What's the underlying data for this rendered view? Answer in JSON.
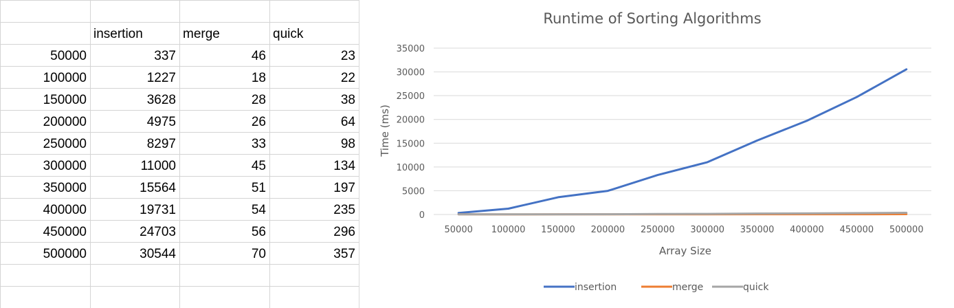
{
  "sheet": {
    "headers": [
      "",
      "insertion",
      "merge",
      "quick"
    ],
    "rows": [
      [
        "50000",
        "337",
        "46",
        "23"
      ],
      [
        "100000",
        "1227",
        "18",
        "22"
      ],
      [
        "150000",
        "3628",
        "28",
        "38"
      ],
      [
        "200000",
        "4975",
        "26",
        "64"
      ],
      [
        "250000",
        "8297",
        "33",
        "98"
      ],
      [
        "300000",
        "11000",
        "45",
        "134"
      ],
      [
        "350000",
        "15564",
        "51",
        "197"
      ],
      [
        "400000",
        "19731",
        "54",
        "235"
      ],
      [
        "450000",
        "24703",
        "56",
        "296"
      ],
      [
        "500000",
        "30544",
        "70",
        "357"
      ]
    ]
  },
  "chart_data": {
    "type": "line",
    "title": "Runtime of Sorting Algorithms",
    "xlabel": "Array Size",
    "ylabel": "Time (ms)",
    "categories": [
      "50000",
      "100000",
      "150000",
      "200000",
      "250000",
      "300000",
      "350000",
      "400000",
      "450000",
      "500000"
    ],
    "ylim": [
      0,
      35000
    ],
    "yticks": [
      "0",
      "5000",
      "10000",
      "15000",
      "20000",
      "25000",
      "30000",
      "35000"
    ],
    "grid": true,
    "legend": "bottom",
    "series": [
      {
        "name": "insertion",
        "color": "#4472c4",
        "values": [
          337,
          1227,
          3628,
          4975,
          8297,
          11000,
          15564,
          19731,
          24703,
          30544
        ]
      },
      {
        "name": "merge",
        "color": "#ed7d31",
        "values": [
          46,
          18,
          28,
          26,
          33,
          45,
          51,
          54,
          56,
          70
        ]
      },
      {
        "name": "quick",
        "color": "#a5a5a5",
        "values": [
          23,
          22,
          38,
          64,
          98,
          134,
          197,
          235,
          296,
          357
        ]
      }
    ]
  }
}
